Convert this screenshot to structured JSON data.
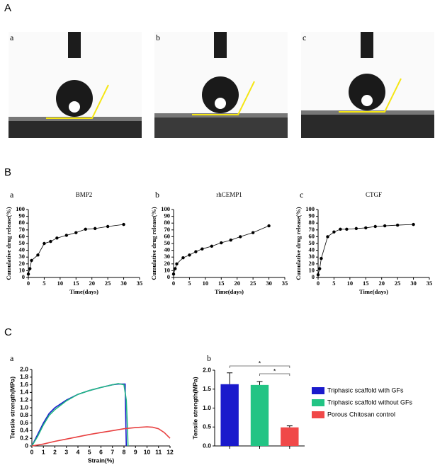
{
  "figure": {
    "labels": [
      "A",
      "B",
      "C"
    ],
    "photos": [
      "a",
      "b",
      "c"
    ]
  },
  "chart_data": [
    {
      "type": "line",
      "panel": "a",
      "title": "BMP2",
      "xlabel": "Time(days)",
      "ylabel": "Cumulative drug release(%)",
      "x": [
        0,
        0.5,
        1,
        3,
        5,
        7,
        9,
        12,
        15,
        18,
        21,
        25,
        30
      ],
      "series": [
        {
          "color": "#000000",
          "values": [
            5,
            13,
            25,
            33,
            50,
            53,
            58,
            62,
            66,
            71,
            72,
            75,
            78
          ]
        }
      ],
      "markers": true,
      "xlim": [
        0,
        35
      ],
      "xticks": [
        0,
        5,
        10,
        15,
        20,
        25,
        30,
        35
      ],
      "ylim": [
        0,
        100
      ],
      "yticks": [
        0,
        10,
        20,
        30,
        40,
        50,
        60,
        70,
        80,
        90,
        100
      ]
    },
    {
      "type": "line",
      "panel": "b",
      "title": "rhCEMP1",
      "xlabel": "Time(days)",
      "ylabel": "Cumulative drug release(%)",
      "x": [
        0,
        0.5,
        1,
        3,
        5,
        7,
        9,
        12,
        15,
        18,
        21,
        25,
        30
      ],
      "series": [
        {
          "color": "#000000",
          "values": [
            5,
            13,
            20,
            29,
            33,
            38,
            42,
            46,
            51,
            55,
            60,
            66,
            76
          ]
        }
      ],
      "markers": true,
      "xlim": [
        0,
        35
      ],
      "xticks": [
        0,
        5,
        10,
        15,
        20,
        25,
        30,
        35
      ],
      "ylim": [
        0,
        100
      ],
      "yticks": [
        0,
        10,
        20,
        30,
        40,
        50,
        60,
        70,
        80,
        90,
        100
      ]
    },
    {
      "type": "line",
      "panel": "c",
      "title": "CTGF",
      "xlabel": "Time(days)",
      "ylabel": "Cumulative drug release(%)",
      "x": [
        0,
        0.5,
        1,
        3,
        5,
        7,
        9,
        12,
        15,
        18,
        21,
        25,
        30
      ],
      "series": [
        {
          "color": "#000000",
          "values": [
            4,
            13,
            28,
            60,
            67,
            71,
            71,
            72,
            73,
            75,
            76,
            77,
            78
          ]
        }
      ],
      "markers": true,
      "xlim": [
        0,
        35
      ],
      "xticks": [
        0,
        5,
        10,
        15,
        20,
        25,
        30,
        35
      ],
      "ylim": [
        0,
        100
      ],
      "yticks": [
        0,
        10,
        20,
        30,
        40,
        50,
        60,
        70,
        80,
        90,
        100
      ]
    },
    {
      "type": "line",
      "panel": "a",
      "xlabel": "Strain(%)",
      "ylabel": "Tensile strength(MPa)",
      "series": [
        {
          "color": "#1a1acc",
          "x": [
            0,
            0.5,
            1,
            1.5,
            2,
            3,
            4,
            5,
            6,
            7,
            7.5,
            8,
            8.1,
            8.15,
            8.2
          ],
          "values": [
            0,
            0.3,
            0.6,
            0.85,
            1.0,
            1.2,
            1.35,
            1.45,
            1.53,
            1.6,
            1.62,
            1.62,
            1.62,
            0.8,
            0
          ]
        },
        {
          "color": "#22b884",
          "x": [
            0,
            0.5,
            1,
            1.5,
            2,
            3,
            4,
            5,
            6,
            7,
            7.5,
            8,
            8.2,
            8.3,
            8.35
          ],
          "values": [
            0,
            0.25,
            0.55,
            0.8,
            0.95,
            1.18,
            1.35,
            1.45,
            1.53,
            1.6,
            1.63,
            1.6,
            1.2,
            0.5,
            0
          ]
        },
        {
          "color": "#e84040",
          "x": [
            0,
            1,
            2,
            3,
            4,
            5,
            6,
            7,
            8,
            9,
            10,
            10.5,
            11,
            11.5,
            12
          ],
          "values": [
            0,
            0.05,
            0.12,
            0.18,
            0.24,
            0.3,
            0.35,
            0.4,
            0.45,
            0.48,
            0.5,
            0.49,
            0.45,
            0.35,
            0.2
          ]
        }
      ],
      "markers": false,
      "xlim": [
        0,
        12
      ],
      "xticks": [
        0,
        1,
        2,
        3,
        4,
        5,
        6,
        7,
        8,
        9,
        10,
        11,
        12
      ],
      "ylim": [
        0,
        2
      ],
      "yticks": [
        0,
        0.2,
        0.4,
        0.6,
        0.8,
        {
          "value": 1,
          "label": "1.0"
        },
        1.2,
        1.4,
        1.6,
        1.8,
        {
          "value": 2,
          "label": "2.0"
        }
      ]
    },
    {
      "type": "bar",
      "panel": "b",
      "ylabel": "Tensile strength(MPa)",
      "categories": [
        null,
        null,
        null
      ],
      "values": [
        1.63,
        1.61,
        0.49
      ],
      "errors": [
        0.3,
        0.09,
        0.04
      ],
      "colors": [
        "#1a1acc",
        "#22c484",
        "#f04848"
      ],
      "legend": [
        "Triphasic scaffold with GFs",
        "Triphasic scaffold without GFs",
        "Porous Chitosan control"
      ],
      "annotations": [
        "*",
        "*"
      ],
      "ylim": [
        0,
        2
      ],
      "yticks": [
        {
          "value": 0,
          "label": "0.0"
        },
        0.5,
        {
          "value": 1,
          "label": "1.0"
        },
        1.5,
        {
          "value": 2,
          "label": "2.0"
        }
      ]
    }
  ]
}
